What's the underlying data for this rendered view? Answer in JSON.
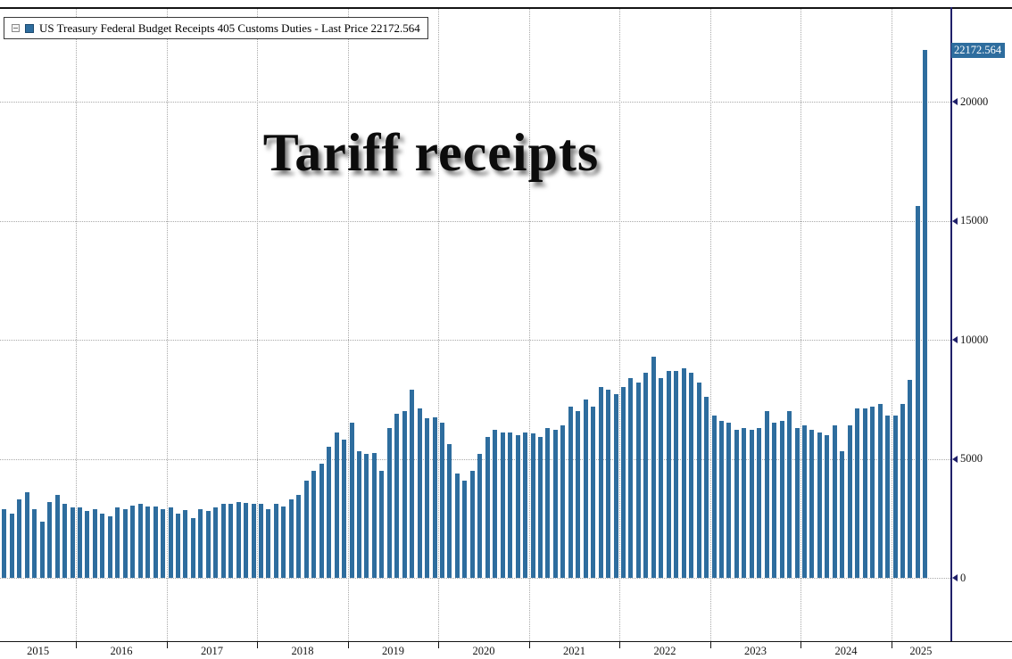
{
  "title": "Tariff receipts",
  "legend": {
    "label": "US Treasury Federal Budget Receipts 405 Customs Duties - Last Price 22172.564"
  },
  "last_price_label": "22172.564",
  "colors": {
    "bar": "#2e6d9e",
    "axis": "#20206a",
    "grid": "#a9a9a9",
    "last_price_bg": "#2e6d9e",
    "last_price_text": "#ffffff"
  },
  "chart_data": {
    "type": "bar",
    "title": "Tariff receipts",
    "series_name": "US Treasury Federal Budget Receipts 405 Customs Duties",
    "unit": "USD millions, monthly",
    "start_month": "2015-03",
    "last_price": 22172.564,
    "ylim": [
      0,
      22500
    ],
    "y_ticks": [
      0,
      5000,
      10000,
      15000,
      20000
    ],
    "x_year_labels": [
      "2015",
      "2016",
      "2017",
      "2018",
      "2019",
      "2020",
      "2021",
      "2022",
      "2023",
      "2024",
      "2025"
    ],
    "grid": "dotted",
    "legend_position": "top-left",
    "values": [
      2900,
      2700,
      3300,
      3600,
      2900,
      2350,
      3200,
      3500,
      3100,
      2950,
      2950,
      2800,
      2900,
      2700,
      2600,
      2950,
      2900,
      3050,
      3100,
      3000,
      3000,
      2900,
      2950,
      2700,
      2850,
      2500,
      2900,
      2800,
      2950,
      3100,
      3100,
      3200,
      3150,
      3100,
      3100,
      2900,
      3100,
      3000,
      3300,
      3500,
      4100,
      4500,
      4800,
      5500,
      6100,
      5800,
      6500,
      5300,
      5200,
      5250,
      4500,
      6300,
      6900,
      7000,
      7900,
      7100,
      6700,
      6750,
      6500,
      5600,
      4400,
      4100,
      4500,
      5200,
      5900,
      6200,
      6100,
      6100,
      6000,
      6100,
      6050,
      5900,
      6300,
      6200,
      6400,
      7200,
      7000,
      7500,
      7200,
      8000,
      7900,
      7700,
      8000,
      8400,
      8200,
      8600,
      9300,
      8400,
      8700,
      8700,
      8800,
      8600,
      8200,
      7600,
      6800,
      6600,
      6500,
      6200,
      6300,
      6200,
      6300,
      7000,
      6500,
      6600,
      7000,
      6300,
      6400,
      6200,
      6100,
      6000,
      6400,
      5300,
      6400,
      7100,
      7100,
      7200,
      7300,
      6800,
      6800,
      7300,
      8300,
      15600,
      22172.564
    ]
  }
}
